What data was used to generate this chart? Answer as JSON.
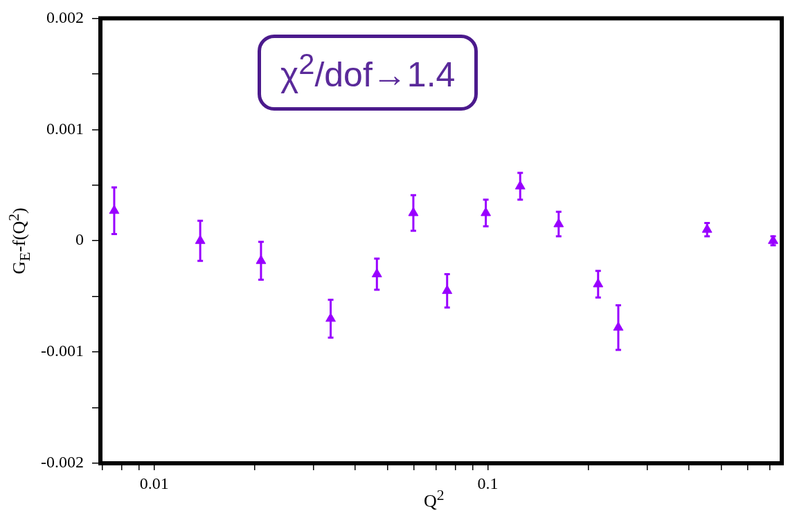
{
  "chart_data": {
    "type": "scatter",
    "xlabel": "Q$^{2}$",
    "ylabel": "G$_{E}$-f(Q$^{2}$)",
    "log": "x",
    "marker": "triangle",
    "annotations": [
      "χ$^{2}$/dof→1.4"
    ],
    "xlim": [
      0.0069,
      0.76
    ],
    "xticks": [
      {
        "value": 0.007,
        "label": null
      },
      {
        "value": 0.008,
        "label": null
      },
      {
        "value": 0.009,
        "label": null
      },
      0.01,
      {
        "value": 0.02,
        "label": null
      },
      {
        "value": 0.03,
        "label": null
      },
      {
        "value": 0.04,
        "label": null
      },
      {
        "value": 0.05,
        "label": null
      },
      {
        "value": 0.06,
        "label": null
      },
      {
        "value": 0.07,
        "label": null
      },
      {
        "value": 0.08,
        "label": null
      },
      {
        "value": 0.09,
        "label": null
      },
      0.1,
      {
        "value": 0.2,
        "label": null
      },
      {
        "value": 0.3,
        "label": null
      },
      {
        "value": 0.4,
        "label": null
      },
      {
        "value": 0.5,
        "label": null
      },
      {
        "value": 0.6,
        "label": null
      },
      {
        "value": 0.7,
        "label": null
      }
    ],
    "ylim": [
      -0.002,
      0.002
    ],
    "yticks": [
      -0.002,
      {
        "value": -0.0015,
        "label": null
      },
      -0.001,
      {
        "value": -0.0005,
        "label": null
      },
      0,
      {
        "value": 0.0005,
        "label": null
      },
      0.001,
      {
        "value": 0.0015,
        "label": null
      },
      0.002
    ],
    "series": [
      {
        "color": "#9900ff",
        "x": [
          0.00759,
          0.01374,
          0.0209,
          0.0338,
          0.0465,
          0.0598,
          0.0755,
          0.0986,
          0.125,
          0.163,
          0.214,
          0.246,
          0.454,
          0.716
        ],
        "values": [
          0.00027,
          0,
          -0.00018,
          -0.0007,
          -0.0003,
          0.00025,
          -0.00045,
          0.00025,
          0.00049,
          0.00015,
          -0.00039,
          -0.00078,
          0.0001,
          0
        ],
        "errors": [
          0.00021,
          0.00018,
          0.00017,
          0.00017,
          0.00014,
          0.00016,
          0.00015,
          0.00012,
          0.00012,
          0.00011,
          0.00012,
          0.0002,
          6e-05,
          4e-05
        ]
      }
    ]
  }
}
